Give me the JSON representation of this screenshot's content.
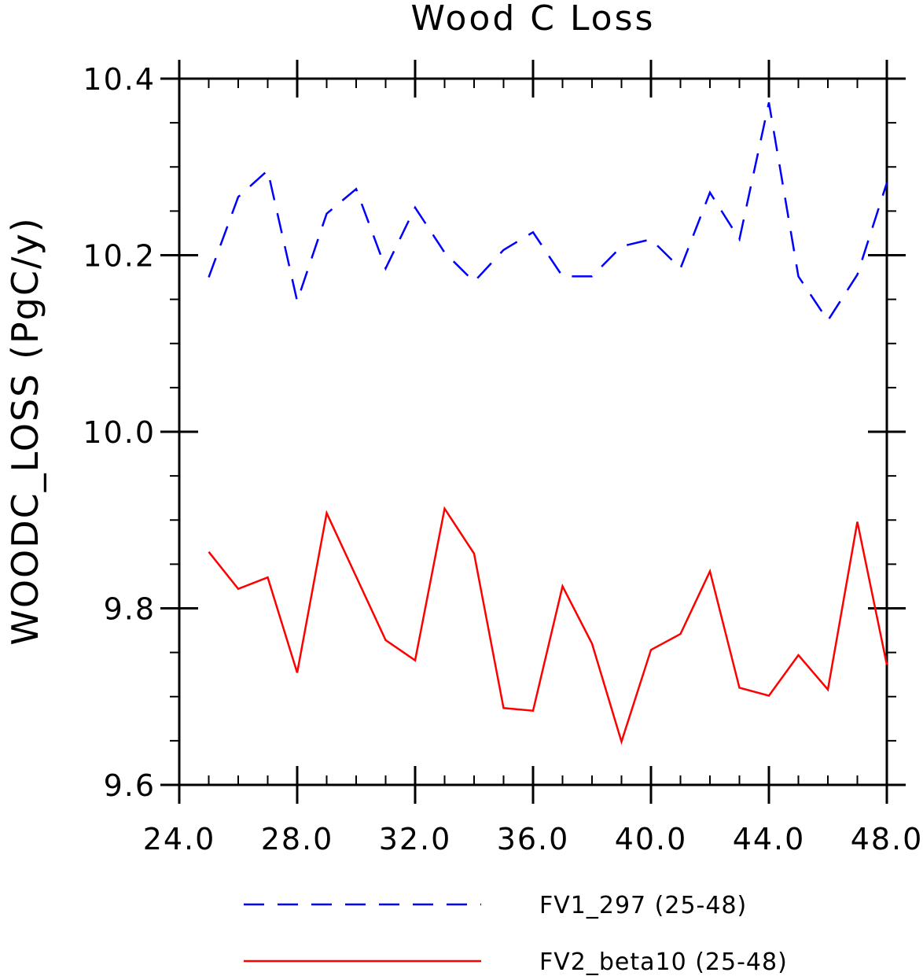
{
  "chart_data": {
    "type": "line",
    "title": "Wood C Loss",
    "xlabel": "",
    "ylabel": "WOODC_LOSS  (PgC/y)",
    "xlim": [
      24,
      48
    ],
    "ylim": [
      9.6,
      10.4
    ],
    "x_ticks": [
      24,
      28,
      32,
      36,
      40,
      44,
      48
    ],
    "x_tick_labels": [
      "24.0",
      "28.0",
      "32.0",
      "36.0",
      "40.0",
      "44.0",
      "48.0"
    ],
    "y_ticks": [
      9.6,
      9.8,
      10.0,
      10.2,
      10.4
    ],
    "y_tick_labels": [
      "9.6",
      "9.8",
      "10.0",
      "10.2",
      "10.4"
    ],
    "grid": false,
    "legend_position": "bottom",
    "x": [
      25,
      26,
      27,
      28,
      29,
      30,
      31,
      32,
      33,
      34,
      35,
      36,
      37,
      38,
      39,
      40,
      41,
      42,
      43,
      44,
      45,
      46,
      47,
      48
    ],
    "series": [
      {
        "name": "FV1_297 (25-48)",
        "color": "#0000ff",
        "dash": "dashed",
        "values": [
          10.175,
          10.266,
          10.296,
          10.148,
          10.247,
          10.275,
          10.185,
          10.254,
          10.203,
          10.17,
          10.206,
          10.226,
          10.176,
          10.176,
          10.21,
          10.218,
          10.185,
          10.271,
          10.218,
          10.373,
          10.176,
          10.126,
          10.178,
          10.282
        ]
      },
      {
        "name": "FV2_beta10 (25-48)",
        "color": "#ff0000",
        "dash": "solid",
        "values": [
          9.864,
          9.822,
          9.835,
          9.727,
          9.908,
          9.836,
          9.764,
          9.741,
          9.913,
          9.862,
          9.687,
          9.684,
          9.825,
          9.76,
          9.649,
          9.753,
          9.771,
          9.842,
          9.71,
          9.701,
          9.747,
          9.708,
          9.898,
          9.736
        ]
      }
    ]
  }
}
